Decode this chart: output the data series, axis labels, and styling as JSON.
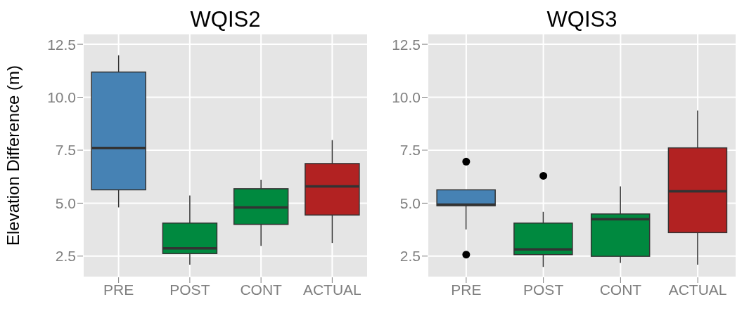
{
  "chart_data": [
    {
      "type": "box",
      "title": "WQIS2",
      "ylabel": "Elevation Difference (m)",
      "categories": [
        "PRE",
        "POST",
        "CONT",
        "ACTUAL"
      ],
      "colors": [
        "#4682b4",
        "#00893f",
        "#00893f",
        "#b22222"
      ],
      "boxes": [
        {
          "low": 4.8,
          "q1": 5.63,
          "median": 7.61,
          "q3": 11.19,
          "high": 11.98
        },
        {
          "low": 2.1,
          "q1": 2.62,
          "median": 2.87,
          "q3": 4.06,
          "high": 5.36
        },
        {
          "low": 2.98,
          "q1": 4.0,
          "median": 4.8,
          "q3": 5.68,
          "high": 6.11
        },
        {
          "low": 3.12,
          "q1": 4.44,
          "median": 5.79,
          "q3": 6.87,
          "high": 7.98
        }
      ],
      "ylim": [
        1.5,
        13.0
      ],
      "yticks": [
        {
          "value": 2.5,
          "label": "2.5"
        },
        {
          "value": 5,
          "label": "5.0"
        },
        {
          "value": 7.5,
          "label": "7.5"
        },
        {
          "value": 10,
          "label": "10.0"
        },
        {
          "value": 12.5,
          "label": "12.5"
        }
      ],
      "grid": true
    },
    {
      "type": "box",
      "title": "WQIS3",
      "categories": [
        "PRE",
        "POST",
        "CONT",
        "ACTUAL"
      ],
      "colors": [
        "#4682b4",
        "#00893f",
        "#00893f",
        "#b22222"
      ],
      "boxes": [
        {
          "low": 3.76,
          "q1": 4.88,
          "median": 4.93,
          "q3": 5.63,
          "high": 5.63,
          "outliers": [
            6.96,
            2.57
          ]
        },
        {
          "low": 1.99,
          "q1": 2.57,
          "median": 2.82,
          "q3": 4.06,
          "high": 4.59,
          "outliers": [
            6.29
          ]
        },
        {
          "low": 2.18,
          "q1": 2.49,
          "median": 4.24,
          "q3": 4.49,
          "high": 5.79
        },
        {
          "low": 2.1,
          "q1": 3.61,
          "median": 5.56,
          "q3": 7.61,
          "high": 9.37
        }
      ],
      "ylim": [
        1.5,
        13.0
      ],
      "yticks": [
        {
          "value": 2.5,
          "label": "2.5"
        },
        {
          "value": 5,
          "label": "5.0"
        },
        {
          "value": 7.5,
          "label": "7.5"
        },
        {
          "value": 10,
          "label": "10.0"
        },
        {
          "value": 12.5,
          "label": "12.5"
        }
      ],
      "grid": true
    }
  ]
}
